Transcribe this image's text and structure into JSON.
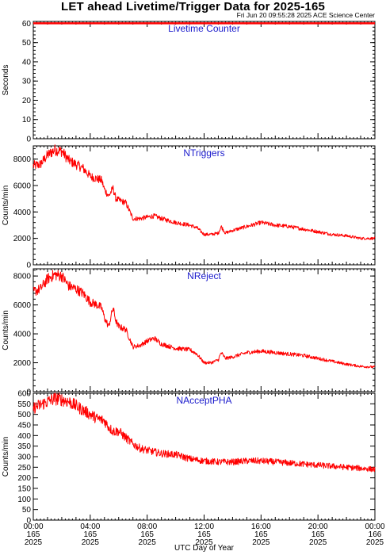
{
  "title": "LET ahead Livetime/Trigger Data for 2025-165",
  "subtitle": "Fri Jun 20 09:55:28 2025 ACE Science Center",
  "colors": {
    "series": "#ff0000",
    "panel_title": "#1a1acc",
    "axis": "#000000"
  },
  "chart_data": [
    {
      "type": "line",
      "panel_title": "Livetime Counter",
      "ylabel": "Seconds",
      "ylim": [
        0,
        61
      ],
      "yticks": [
        0,
        10,
        20,
        30,
        40,
        50,
        60
      ],
      "series": [
        {
          "x": [
            0,
            24
          ],
          "y": [
            60,
            60
          ]
        }
      ]
    },
    {
      "type": "line",
      "panel_title": "NTriggers",
      "ylabel": "Counts/min",
      "ylim": [
        0,
        9000
      ],
      "yticks": [
        0,
        2000,
        4000,
        6000,
        8000
      ],
      "noise": 0.05,
      "series": [
        {
          "x": [
            0,
            0.5,
            1.0,
            1.5,
            2.0,
            2.5,
            3.0,
            3.5,
            4.0,
            4.5,
            4.8,
            5.0,
            5.3,
            5.6,
            5.8,
            6.0,
            6.5,
            7.0,
            7.5,
            8.0,
            8.5,
            9.0,
            10.0,
            11.0,
            11.5,
            12.0,
            12.5,
            13.0,
            13.2,
            13.5,
            14.0,
            15.0,
            16.0,
            17.0,
            18.0,
            19.0,
            20.0,
            21.0,
            22.0,
            23.0,
            24.0
          ],
          "y": [
            7500,
            7600,
            8300,
            8700,
            8600,
            7900,
            7600,
            7300,
            6700,
            6500,
            6400,
            5700,
            5200,
            5800,
            5000,
            4900,
            4700,
            3500,
            3500,
            3600,
            3700,
            3500,
            3200,
            3000,
            2800,
            2300,
            2300,
            2400,
            2900,
            2400,
            2600,
            2900,
            3200,
            3000,
            2900,
            2700,
            2500,
            2300,
            2200,
            2000,
            2000
          ]
        }
      ]
    },
    {
      "type": "line",
      "panel_title": "NReject",
      "ylabel": "Counts/min",
      "ylim": [
        0,
        8500
      ],
      "yticks": [
        0,
        2000,
        4000,
        6000,
        8000
      ],
      "noise": 0.05,
      "series": [
        {
          "x": [
            0,
            0.5,
            1.0,
            1.5,
            2.0,
            2.5,
            3.0,
            3.5,
            4.0,
            4.5,
            4.8,
            5.0,
            5.3,
            5.6,
            5.8,
            6.0,
            6.5,
            7.0,
            7.5,
            8.0,
            8.5,
            9.0,
            10.0,
            11.0,
            11.5,
            12.0,
            12.5,
            13.0,
            13.2,
            13.5,
            14.0,
            15.0,
            16.0,
            17.0,
            18.0,
            19.0,
            20.0,
            21.0,
            22.0,
            23.0,
            24.0
          ],
          "y": [
            6900,
            7100,
            7800,
            8100,
            8000,
            7300,
            7100,
            6800,
            6200,
            6000,
            5800,
            5100,
            4500,
            5800,
            4900,
            4500,
            4300,
            3100,
            3200,
            3500,
            3700,
            3300,
            3000,
            2900,
            2600,
            2000,
            2000,
            2200,
            2700,
            2300,
            2400,
            2700,
            2800,
            2700,
            2600,
            2500,
            2300,
            2100,
            1900,
            1750,
            1700
          ]
        }
      ]
    },
    {
      "type": "line",
      "panel_title": "NAcceptPHA",
      "ylabel": "Counts/min",
      "ylim": [
        0,
        600
      ],
      "yticks": [
        0,
        50,
        100,
        150,
        200,
        250,
        300,
        350,
        400,
        450,
        500,
        550,
        600
      ],
      "noise": 0.055,
      "series": [
        {
          "x": [
            0,
            0.5,
            1.0,
            1.5,
            2.0,
            2.5,
            3.0,
            3.5,
            4.0,
            4.5,
            5.0,
            5.3,
            5.6,
            6.0,
            6.5,
            7.0,
            7.5,
            8.0,
            9.0,
            10.0,
            11.0,
            12.0,
            13.0,
            14.0,
            15.0,
            16.0,
            17.0,
            18.0,
            19.0,
            20.0,
            21.0,
            22.0,
            23.0,
            24.0
          ],
          "y": [
            530,
            545,
            560,
            575,
            570,
            560,
            540,
            520,
            500,
            480,
            470,
            440,
            420,
            420,
            390,
            360,
            340,
            330,
            315,
            310,
            290,
            280,
            275,
            275,
            280,
            280,
            275,
            270,
            265,
            260,
            255,
            250,
            245,
            240
          ]
        }
      ]
    }
  ],
  "x_axis": {
    "xlim": [
      0,
      24
    ],
    "major_ticks": [
      0,
      4,
      8,
      12,
      16,
      20,
      24
    ],
    "tick_labels": [
      {
        "time": "00:00",
        "day": "165",
        "year": "2025"
      },
      {
        "time": "04:00",
        "day": "165",
        "year": "2025"
      },
      {
        "time": "08:00",
        "day": "165",
        "year": "2025"
      },
      {
        "time": "12:00",
        "day": "165",
        "year": "2025"
      },
      {
        "time": "16:00",
        "day": "165",
        "year": "2025"
      },
      {
        "time": "20:00",
        "day": "165",
        "year": "2025"
      },
      {
        "time": "00:00",
        "day": "166",
        "year": "2025"
      }
    ],
    "xlabel": "UTC Day of Year"
  }
}
